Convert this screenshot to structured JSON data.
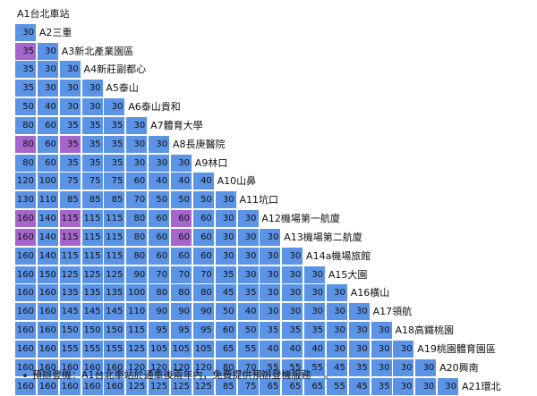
{
  "stations": [
    "A1台北車站",
    "A2三重",
    "A3新北產業園區",
    "A4新莊副都心",
    "A5泰山",
    "A6泰山貴和",
    "A7體育大學",
    "A8長庚醫院",
    "A9林口",
    "A10山鼻",
    "A11坑口",
    "A12機場第一航廈",
    "A13機場第二航廈",
    "A14a機場旅館",
    "A15大園",
    "A16橫山",
    "A17領航",
    "A18高鐵桃園",
    "A19桃園體育園區",
    "A20興南",
    "A21環北"
  ],
  "fares": [
    [],
    [
      30
    ],
    [
      35,
      30
    ],
    [
      35,
      30,
      30
    ],
    [
      35,
      30,
      30,
      30
    ],
    [
      50,
      40,
      30,
      30,
      30
    ],
    [
      80,
      60,
      35,
      35,
      35,
      30
    ],
    [
      80,
      60,
      35,
      35,
      35,
      30,
      30
    ],
    [
      80,
      60,
      35,
      35,
      35,
      30,
      30,
      30
    ],
    [
      120,
      100,
      75,
      75,
      75,
      60,
      40,
      40,
      40
    ],
    [
      130,
      110,
      85,
      85,
      85,
      70,
      50,
      50,
      50,
      30
    ],
    [
      160,
      140,
      115,
      115,
      115,
      80,
      60,
      60,
      60,
      30,
      30
    ],
    [
      160,
      140,
      115,
      115,
      115,
      80,
      60,
      60,
      60,
      30,
      30,
      30
    ],
    [
      160,
      140,
      115,
      115,
      115,
      80,
      60,
      60,
      60,
      30,
      30,
      30,
      30
    ],
    [
      160,
      150,
      125,
      125,
      125,
      90,
      70,
      70,
      70,
      35,
      30,
      30,
      30,
      30
    ],
    [
      160,
      160,
      135,
      135,
      135,
      100,
      80,
      80,
      80,
      45,
      35,
      30,
      30,
      30,
      30
    ],
    [
      160,
      160,
      145,
      145,
      145,
      110,
      90,
      90,
      90,
      50,
      40,
      30,
      30,
      30,
      30,
      30
    ],
    [
      160,
      160,
      150,
      150,
      150,
      115,
      95,
      95,
      95,
      60,
      50,
      35,
      35,
      35,
      30,
      30,
      30
    ],
    [
      160,
      160,
      155,
      155,
      155,
      125,
      105,
      105,
      105,
      65,
      55,
      40,
      40,
      40,
      30,
      30,
      30,
      30
    ],
    [
      160,
      160,
      160,
      160,
      160,
      120,
      120,
      120,
      120,
      80,
      70,
      55,
      55,
      55,
      45,
      35,
      30,
      30,
      30
    ],
    [
      160,
      160,
      160,
      160,
      160,
      125,
      125,
      125,
      125,
      85,
      75,
      65,
      65,
      65,
      55,
      45,
      35,
      30,
      30,
      30
    ]
  ],
  "highlighted_cells": [
    [
      2,
      0
    ],
    [
      7,
      2
    ],
    [
      7,
      0
    ],
    [
      11,
      0
    ],
    [
      11,
      2
    ],
    [
      11,
      7
    ],
    [
      12,
      0
    ],
    [
      12,
      2
    ],
    [
      12,
      7
    ]
  ],
  "colors": {
    "cell": "#5b93e6",
    "highlight": "#a565cc"
  },
  "note": {
    "text": "預辦登機：A1台北車站於通車後兩年內，免費提供預辦登機服務",
    "ref": "[32]",
    "end": "。"
  }
}
